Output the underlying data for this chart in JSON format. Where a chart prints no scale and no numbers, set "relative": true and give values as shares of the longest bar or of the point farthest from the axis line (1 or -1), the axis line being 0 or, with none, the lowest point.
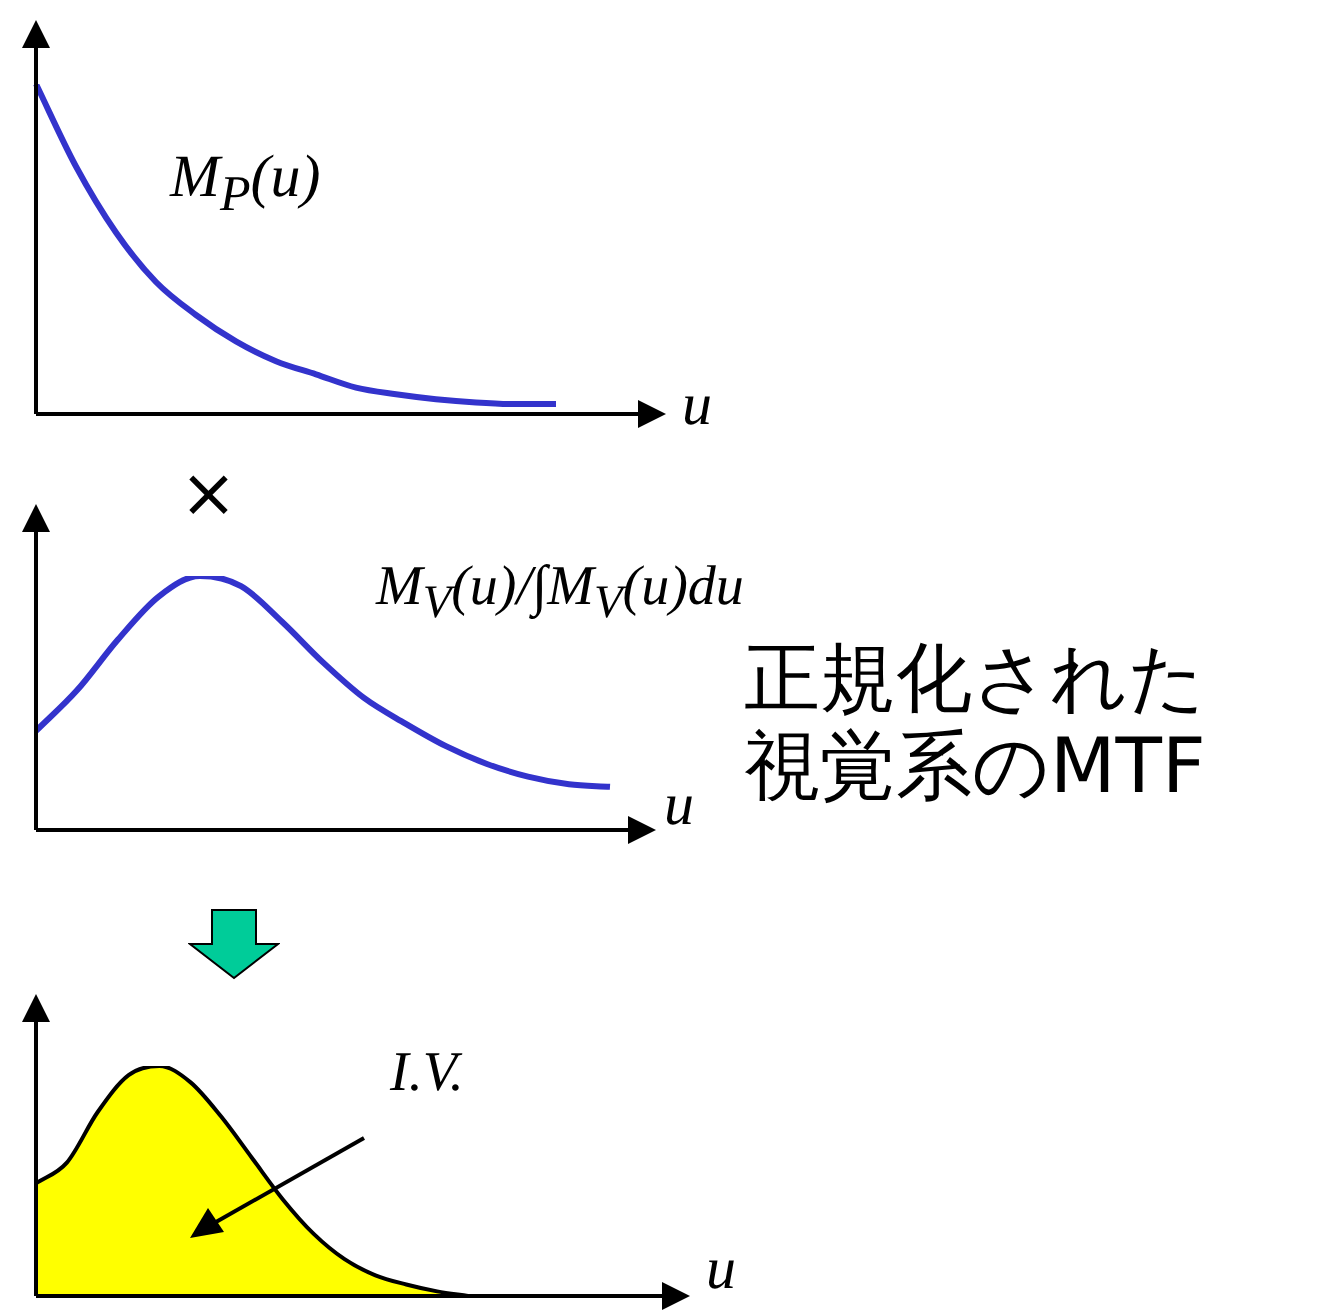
{
  "chart_data": [
    {
      "type": "line",
      "relative": true,
      "xlabel": "u",
      "annotations": [
        "M$_{P}$(u)"
      ],
      "categories": [
        null,
        null,
        null,
        null,
        null,
        null,
        null,
        null,
        null,
        null,
        null,
        null,
        null,
        null
      ],
      "series": [
        {
          "color": "#3333cc",
          "values": [
            1.0,
            0.75,
            0.55,
            0.4,
            0.3,
            0.22,
            0.16,
            0.12,
            0.08,
            0.06,
            0.045,
            0.035,
            0.03,
            0.03
          ]
        }
      ]
    },
    {
      "type": "line",
      "relative": true,
      "xlabel": "u",
      "annotations": [
        "×",
        "M$_{V}$(u)/∫M$_{V}$(u)du",
        "正規化された視覚系のMTF"
      ],
      "categories": [
        null,
        null,
        null,
        null,
        null,
        null,
        null,
        null,
        null,
        null,
        null,
        null,
        null,
        null,
        null
      ],
      "series": [
        {
          "color": "#3333cc",
          "values": [
            0.39,
            0.55,
            0.75,
            0.92,
            1.0,
            0.96,
            0.82,
            0.66,
            0.52,
            0.42,
            0.33,
            0.26,
            0.21,
            0.18,
            0.17
          ]
        }
      ]
    },
    {
      "type": "area",
      "relative": true,
      "xlabel": "u",
      "annotations": [
        "I.V."
      ],
      "categories": [
        null,
        null,
        null,
        null,
        null,
        null,
        null,
        null,
        null,
        null,
        null,
        null,
        null,
        null,
        null
      ],
      "series": [
        {
          "color": "#ffff00",
          "values": [
            0.49,
            0.58,
            0.8,
            0.96,
            1.0,
            0.93,
            0.78,
            0.6,
            0.42,
            0.27,
            0.16,
            0.09,
            0.05,
            0.02,
            0.0
          ]
        }
      ]
    }
  ]
}
